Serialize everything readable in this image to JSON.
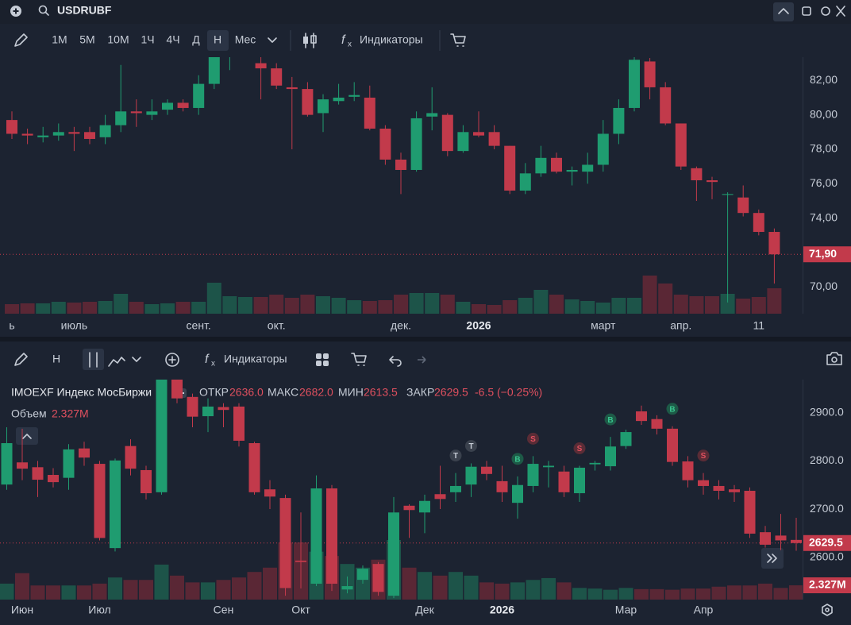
{
  "toolbar": {
    "symbol": "USDRUBF",
    "intervals": [
      "1M",
      "5M",
      "10M",
      "1Ч",
      "4Ч",
      "Д",
      "Н",
      "Мес"
    ],
    "indicators": "Индикаторы"
  },
  "bottom_toolbar": {
    "interval": "Н",
    "indicators": "Индикаторы"
  },
  "chart_data": [
    {
      "type": "candlestick",
      "categories": [
        "ь",
        null,
        null,
        null,
        "июль",
        null,
        null,
        null,
        null,
        null,
        null,
        null,
        "сент.",
        null,
        null,
        null,
        null,
        "окт.",
        null,
        null,
        null,
        null,
        null,
        null,
        null,
        "дек.",
        null,
        null,
        null,
        null,
        "2026",
        null,
        null,
        null,
        null,
        null,
        null,
        null,
        "март",
        null,
        null,
        null,
        null,
        "апр.",
        null,
        null,
        null,
        null,
        "11",
        null
      ],
      "open": [
        79.7,
        78.9,
        78.7,
        78.8,
        79.0,
        79.0,
        78.7,
        79.4,
        80.2,
        80.0,
        80.3,
        80.7,
        80.4,
        81.8,
        84.0,
        84.2,
        83.0,
        82.7,
        81.6,
        81.5,
        80.1,
        80.8,
        81.05,
        81.0,
        79.2,
        77.4,
        76.8,
        79.9,
        80.0,
        77.9,
        79.0,
        79.0,
        78.2,
        75.6,
        76.6,
        77.5,
        76.7,
        76.7,
        77.1,
        78.9,
        80.4,
        83.1,
        81.6,
        79.5,
        76.9,
        76.2,
        75.35,
        75.2,
        74.3,
        73.2
      ],
      "high": [
        80.2,
        79.2,
        79.3,
        79.5,
        79.3,
        79.3,
        80.0,
        82.9,
        80.9,
        80.9,
        80.9,
        80.9,
        82.3,
        83.4,
        84.8,
        85.0,
        83.4,
        83.0,
        82.2,
        81.9,
        81.2,
        81.8,
        81.9,
        81.7,
        79.4,
        77.8,
        80.2,
        81.6,
        80.1,
        79.4,
        80.2,
        79.4,
        78.2,
        77.2,
        78.2,
        77.8,
        77.0,
        77.8,
        79.7,
        80.9,
        83.4,
        83.3,
        81.9,
        79.5,
        77.0,
        76.4,
        75.5,
        75.9,
        74.5,
        73.4
      ],
      "low": [
        78.6,
        78.3,
        78.4,
        78.5,
        77.9,
        78.3,
        78.3,
        79.0,
        79.3,
        79.7,
        80.0,
        80.2,
        80.0,
        81.5,
        82.6,
        83.6,
        80.9,
        81.5,
        78.0,
        79.9,
        79.0,
        80.6,
        80.8,
        79.1,
        77.1,
        75.4,
        76.7,
        79.1,
        77.6,
        77.8,
        78.7,
        78.0,
        75.4,
        75.4,
        76.4,
        76.6,
        75.9,
        76.0,
        76.7,
        78.3,
        80.2,
        80.9,
        79.4,
        76.8,
        75.0,
        75.1,
        69.1,
        74.1,
        73.0,
        70.2
      ],
      "close": [
        78.9,
        78.8,
        78.8,
        79.0,
        78.9,
        78.6,
        79.4,
        80.2,
        80.1,
        80.2,
        80.7,
        80.4,
        81.8,
        83.4,
        84.4,
        84.6,
        82.7,
        81.7,
        81.5,
        80.0,
        80.9,
        81.0,
        81.15,
        79.2,
        77.4,
        76.8,
        79.8,
        80.1,
        77.9,
        79.0,
        78.8,
        78.2,
        75.6,
        76.6,
        77.5,
        76.7,
        76.8,
        77.1,
        78.9,
        80.4,
        83.2,
        81.6,
        79.5,
        77.0,
        76.2,
        76.1,
        75.4,
        74.3,
        73.2,
        71.9
      ],
      "volume": [
        12,
        13,
        13,
        15,
        14,
        15,
        16,
        25,
        15,
        12,
        13,
        15,
        15,
        39,
        22,
        21,
        21,
        24,
        20,
        24,
        22,
        20,
        17,
        16,
        17,
        24,
        26,
        26,
        24,
        15,
        12,
        11,
        17,
        20,
        30,
        24,
        18,
        16,
        14,
        20,
        20,
        48,
        38,
        24,
        22,
        22,
        25,
        19,
        21,
        32
      ],
      "ylim": [
        68.45,
        83.35
      ],
      "yticks": [
        {
          "value": 70,
          "label": "70,00"
        },
        {
          "value": 74,
          "label": "74,00"
        },
        {
          "value": 76,
          "label": "76,00"
        },
        {
          "value": 78,
          "label": "78,00"
        },
        {
          "value": 80,
          "label": "80,00"
        },
        {
          "value": 82,
          "label": "82,00"
        }
      ],
      "last_price": {
        "value": 71.9,
        "label": "71,90"
      },
      "up_color": "#1f9c70",
      "down_color": "#c23a4b",
      "volume_up_color": "#1d5449",
      "volume_down_color": "#5a2735"
    },
    {
      "type": "candlestick",
      "title": "IMOEXF Индекс МосБиржи",
      "legend": [
        {
          "name": "ОТКР",
          "value": "2636.0"
        },
        {
          "name": "МАКС",
          "value": "2682.0"
        },
        {
          "name": "МИН",
          "value": "2613.5"
        },
        {
          "name": "ЗАКР",
          "value": "2629.5"
        }
      ],
      "change": "-6.5 (−0.25%)",
      "volume_name": "Объем",
      "categories": [
        null,
        "Июн",
        null,
        null,
        null,
        null,
        "Июл",
        null,
        null,
        null,
        null,
        null,
        null,
        null,
        "Сен",
        null,
        null,
        null,
        null,
        "Окт",
        null,
        null,
        null,
        null,
        null,
        null,
        null,
        "Дек",
        null,
        null,
        null,
        null,
        "2026",
        null,
        null,
        null,
        null,
        null,
        null,
        null,
        "Мар",
        null,
        null,
        null,
        null,
        "Апр",
        null,
        null,
        null,
        null,
        null,
        null
      ],
      "open": [
        2751,
        2797,
        2787,
        2771,
        2765,
        2826,
        2794,
        2619,
        2831,
        2781,
        2735,
        2975,
        2933,
        2893,
        2912,
        2913,
        2837,
        2741,
        2723,
        2593,
        2545,
        2743,
        2533,
        2553,
        2586,
        2520,
        2707,
        2693,
        2731,
        2735,
        2751,
        2788,
        2758,
        2713,
        2748,
        2787,
        2778,
        2733,
        2793,
        2789,
        2831,
        2903,
        2887,
        2867,
        2799,
        2760,
        2748,
        2741,
        2738,
        2652,
        2645,
        2636
      ],
      "high": [
        2870,
        2867,
        2800,
        2785,
        2835,
        2840,
        2800,
        2805,
        2845,
        2790,
        2990,
        2990,
        2940,
        2930,
        2920,
        2920,
        2840,
        2760,
        2730,
        2693,
        2770,
        2750,
        2560,
        2583,
        2590,
        2725,
        2710,
        2730,
        2790,
        2775,
        2795,
        2800,
        2790,
        2768,
        2810,
        2800,
        2790,
        2790,
        2800,
        2850,
        2865,
        2915,
        2895,
        2872,
        2810,
        2775,
        2760,
        2750,
        2745,
        2665,
        2690,
        2682
      ],
      "low": [
        2740,
        2760,
        2725,
        2745,
        2740,
        2790,
        2635,
        2612,
        2770,
        2720,
        2730,
        2920,
        2870,
        2860,
        2870,
        2830,
        2730,
        2700,
        2520,
        2535,
        2540,
        2530,
        2525,
        2545,
        2520,
        2515,
        2640,
        2650,
        2700,
        2715,
        2725,
        2760,
        2715,
        2680,
        2735,
        2745,
        2725,
        2715,
        2780,
        2780,
        2825,
        2875,
        2855,
        2790,
        2745,
        2730,
        2720,
        2715,
        2640,
        2620,
        2615,
        2613.5
      ],
      "close": [
        2837,
        2784,
        2761,
        2756,
        2824,
        2807,
        2640,
        2801,
        2784,
        2733,
        2975,
        2930,
        2892,
        2913,
        2906,
        2842,
        2735,
        2726,
        2536,
        2590,
        2743,
        2545,
        2540,
        2576,
        2528,
        2693,
        2698,
        2717,
        2721,
        2748,
        2788,
        2773,
        2735,
        2750,
        2794,
        2790,
        2735,
        2786,
        2796,
        2830,
        2860,
        2883,
        2867,
        2798,
        2760,
        2748,
        2738,
        2735,
        2649,
        2626,
        2635,
        2629.5
      ],
      "volume": [
        2.6,
        4.3,
        2.3,
        2.3,
        2.3,
        2.3,
        2.6,
        3.6,
        3.2,
        3.2,
        5.7,
        3.9,
        2.8,
        2.8,
        3.2,
        3.6,
        4.5,
        5.2,
        9.3,
        9.3,
        7.8,
        7.1,
        5.8,
        5.2,
        6.5,
        9.7,
        5.2,
        4.5,
        3.9,
        4.5,
        3.9,
        2.8,
        2.6,
        2.8,
        3.2,
        3.5,
        2.8,
        1.9,
        1.8,
        1.6,
        1.9,
        1.7,
        1.7,
        1.6,
        1.8,
        1.8,
        2.1,
        2.3,
        2.3,
        2.6,
        1.9,
        2.327
      ],
      "ylim": [
        2512,
        2969
      ],
      "yticks": [
        {
          "value": 2600,
          "label": "2600.0"
        },
        {
          "value": 2700,
          "label": "2700.0"
        },
        {
          "value": 2800,
          "label": "2800.0"
        },
        {
          "value": 2900,
          "label": "2900.0"
        }
      ],
      "last_price": 2629.5,
      "last_volume": {
        "value": 2.327,
        "label": "2.327M"
      },
      "markers": [
        {
          "index": 29,
          "label": "T",
          "color": "#3a414d"
        },
        {
          "index": 30,
          "label": "T",
          "color": "#3a414d"
        },
        {
          "index": 33,
          "label": "B",
          "color": "#1d5a47"
        },
        {
          "index": 34,
          "label": "S",
          "color": "#5a2c36"
        },
        {
          "index": 37,
          "label": "S",
          "color": "#5a2c36"
        },
        {
          "index": 39,
          "label": "B",
          "color": "#1d5a47"
        },
        {
          "index": 43,
          "label": "B",
          "color": "#1d5a47"
        },
        {
          "index": 45,
          "label": "S",
          "color": "#5a2c36"
        }
      ],
      "up_color": "#1f9c70",
      "down_color": "#c23a4b",
      "volume_up_color": "#1d5449",
      "volume_down_color": "#5a2735"
    }
  ]
}
